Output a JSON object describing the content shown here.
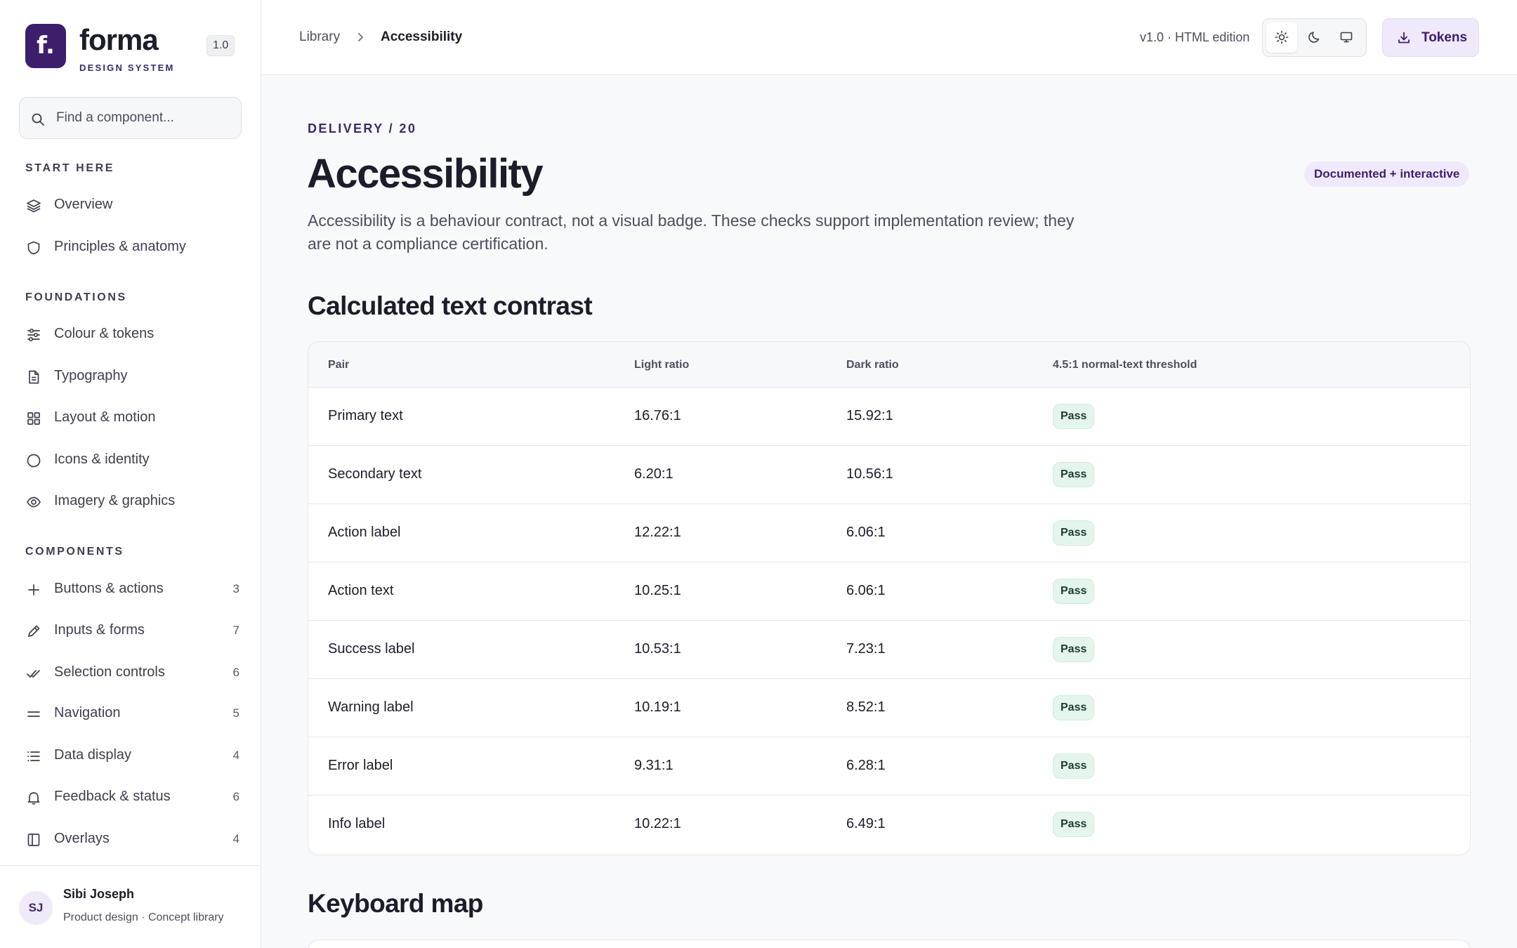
{
  "brand": {
    "logo_letter": "f.",
    "name": "forma",
    "subtitle": "DESIGN SYSTEM",
    "version": "1.0",
    "accent": "#3d1e6d"
  },
  "search": {
    "placeholder": "Find a component..."
  },
  "sidebar": {
    "sections": [
      {
        "title": "START HERE"
      },
      {
        "title": "FOUNDATIONS"
      },
      {
        "title": "COMPONENTS"
      }
    ],
    "items": [
      {
        "label": "Overview",
        "icon": "layers-icon"
      },
      {
        "label": "Principles & anatomy",
        "icon": "shield-icon"
      },
      {
        "label": "Colour & tokens",
        "icon": "sliders-icon"
      },
      {
        "label": "Typography",
        "icon": "document-icon"
      },
      {
        "label": "Layout & motion",
        "icon": "grid-icon"
      },
      {
        "label": "Icons & identity",
        "icon": "circle-icon"
      },
      {
        "label": "Imagery & graphics",
        "icon": "eye-icon"
      },
      {
        "label": "Buttons & actions",
        "icon": "plus-icon",
        "count": "3"
      },
      {
        "label": "Inputs & forms",
        "icon": "pencil-icon",
        "count": "7"
      },
      {
        "label": "Selection controls",
        "icon": "double-check-icon",
        "count": "6"
      },
      {
        "label": "Navigation",
        "icon": "menu-icon",
        "count": "5"
      },
      {
        "label": "Data display",
        "icon": "list-icon",
        "count": "4"
      },
      {
        "label": "Feedback & status",
        "icon": "bell-icon",
        "count": "6"
      },
      {
        "label": "Overlays",
        "icon": "panel-icon",
        "count": "4"
      }
    ]
  },
  "user": {
    "initials": "SJ",
    "name": "Sibi Joseph",
    "role": "Product design · Concept library"
  },
  "topbar": {
    "breadcrumb_root": "Library",
    "breadcrumb_current": "Accessibility",
    "edition": "v1.0 · HTML edition",
    "tokens_label": "Tokens",
    "theme_options": [
      "sun-icon",
      "moon-icon",
      "monitor-icon"
    ],
    "active_theme": "light"
  },
  "main": {
    "eyebrow": "DELIVERY / 20",
    "title": "Accessibility",
    "status": "Documented + interactive",
    "description": "Accessibility is a behaviour contract, not a visual badge. These checks support implementation review; they are not a compliance certification.",
    "contrast_section_title": "Calculated text contrast",
    "keyboard_section_title": "Keyboard map"
  },
  "contrast_table": {
    "headers": [
      "Pair",
      "Light ratio",
      "Dark ratio",
      "4.5:1 normal-text threshold"
    ],
    "rows": [
      {
        "pair": "Primary text",
        "light": "16.76:1",
        "dark": "15.92:1",
        "result": "Pass"
      },
      {
        "pair": "Secondary text",
        "light": "6.20:1",
        "dark": "10.56:1",
        "result": "Pass"
      },
      {
        "pair": "Action label",
        "light": "12.22:1",
        "dark": "6.06:1",
        "result": "Pass"
      },
      {
        "pair": "Action text",
        "light": "10.25:1",
        "dark": "6.06:1",
        "result": "Pass"
      },
      {
        "pair": "Success label",
        "light": "10.53:1",
        "dark": "7.23:1",
        "result": "Pass"
      },
      {
        "pair": "Warning label",
        "light": "10.19:1",
        "dark": "8.52:1",
        "result": "Pass"
      },
      {
        "pair": "Error label",
        "light": "9.31:1",
        "dark": "6.28:1",
        "result": "Pass"
      },
      {
        "pair": "Info label",
        "light": "10.22:1",
        "dark": "6.49:1",
        "result": "Pass"
      }
    ]
  },
  "colors": {
    "pass_bg": "#e4f6ec",
    "pass_text": "#1c3d2c",
    "pill_bg": "#efe9fb"
  }
}
